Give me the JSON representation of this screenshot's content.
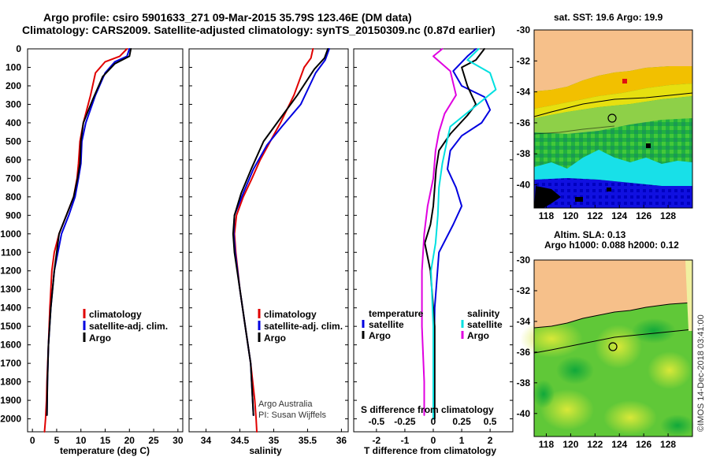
{
  "header": {
    "title_line1": "Argo profile: csiro 5901633_271 09-Mar-2015 35.79S 123.46E (DM data)",
    "title_line2": "Climatology: CARS2009. Satellite-adjusted climatology: synTS_20150309.nc (0.87d earlier)"
  },
  "colors": {
    "climatology": "#e00000",
    "satellite": "#0000e0",
    "argo": "#000000",
    "sat_salinity": "#00e0e0",
    "argo_salinity": "#e000e0",
    "land": "#f6c08a"
  },
  "credits": {
    "line1": "Argo Australia",
    "line2": "PI: Susan Wijffels",
    "stamp": "©IMOS 14-Dec-2018 03:41:00"
  },
  "chart_data": [
    {
      "type": "line",
      "panel": "temperature",
      "xlabel": "temperature (deg C)",
      "ylabel": "",
      "xlim": [
        -1,
        31
      ],
      "ylim": [
        2070,
        0
      ],
      "y_inverted": true,
      "xticks": [
        0,
        5,
        10,
        15,
        20,
        25,
        30
      ],
      "yticks": [
        0,
        100,
        200,
        300,
        400,
        500,
        600,
        700,
        800,
        900,
        1000,
        1100,
        1200,
        1300,
        1400,
        1500,
        1600,
        1700,
        1800,
        1900,
        2000
      ],
      "legend": [
        "climatology",
        "satellite-adj. clim.",
        "Argo"
      ],
      "legend_position": "lower-right",
      "series": [
        {
          "name": "climatology",
          "color": "#e00000",
          "x": [
            19.5,
            18,
            15,
            13,
            12,
            10.5,
            9.8,
            9.5,
            9.2,
            8.5,
            7,
            5.5,
            4.5,
            4.0,
            3.6,
            3.3,
            3.0,
            2.9,
            2.7,
            2.5
          ],
          "y": [
            0,
            40,
            70,
            130,
            250,
            400,
            500,
            620,
            700,
            800,
            900,
            1000,
            1100,
            1200,
            1400,
            1600,
            1800,
            1900,
            2000,
            2070
          ]
        },
        {
          "name": "satellite-adj. clim.",
          "color": "#0000e0",
          "x": [
            20.0,
            19.5,
            17,
            15,
            13,
            11,
            10.2,
            10,
            9.5,
            8.8,
            7.5,
            6,
            4.5,
            3.8,
            3.3,
            3.1,
            3.0
          ],
          "y": [
            0,
            40,
            70,
            130,
            250,
            400,
            500,
            620,
            700,
            800,
            900,
            1000,
            1200,
            1400,
            1600,
            1800,
            1980
          ]
        },
        {
          "name": "Argo",
          "color": "#000000",
          "x": [
            20.3,
            20.0,
            17,
            14.5,
            12.5,
            10.5,
            10.0,
            9.8,
            9.3,
            8.5,
            7,
            5.5,
            4.5,
            3.8,
            3.3,
            3.1,
            3.0
          ],
          "y": [
            0,
            40,
            80,
            150,
            270,
            400,
            500,
            620,
            700,
            800,
            900,
            1000,
            1200,
            1400,
            1600,
            1800,
            1980
          ]
        }
      ]
    },
    {
      "type": "line",
      "panel": "salinity",
      "xlabel": "salinity",
      "ylabel": "",
      "xlim": [
        33.75,
        36.1
      ],
      "ylim": [
        2070,
        0
      ],
      "y_inverted": true,
      "xticks": [
        34,
        34.5,
        35,
        35.5,
        36
      ],
      "legend": [
        "climatology",
        "satellite-adj. clim.",
        "Argo"
      ],
      "legend_position": "lower-right",
      "series": [
        {
          "name": "climatology",
          "color": "#e00000",
          "x": [
            35.58,
            35.55,
            35.45,
            35.3,
            35.1,
            34.95,
            34.8,
            34.68,
            34.55,
            34.45,
            34.42,
            34.44,
            34.5,
            34.58,
            34.66,
            34.72,
            34.74,
            34.75
          ],
          "y": [
            0,
            50,
            100,
            250,
            400,
            500,
            600,
            700,
            800,
            900,
            1000,
            1100,
            1300,
            1500,
            1700,
            1900,
            2000,
            2070
          ]
        },
        {
          "name": "satellite-adj. clim.",
          "color": "#0000e0",
          "x": [
            35.82,
            35.76,
            35.62,
            35.4,
            35.12,
            34.9,
            34.7,
            34.55,
            34.42,
            34.41,
            34.43,
            34.5,
            34.58,
            34.66,
            34.7
          ],
          "y": [
            0,
            60,
            130,
            300,
            420,
            520,
            650,
            780,
            900,
            1000,
            1100,
            1300,
            1500,
            1700,
            1980
          ]
        },
        {
          "name": "Argo",
          "color": "#000000",
          "x": [
            35.8,
            35.75,
            35.6,
            35.35,
            35.05,
            34.85,
            34.68,
            34.52,
            34.42,
            34.4,
            34.42,
            34.5,
            34.58,
            34.66,
            34.7
          ],
          "y": [
            0,
            50,
            110,
            250,
            400,
            500,
            640,
            780,
            900,
            1000,
            1100,
            1300,
            1500,
            1700,
            1980
          ]
        }
      ]
    },
    {
      "type": "line",
      "panel": "differences",
      "xlabel": "T difference from climatology",
      "xlabel_top": "S difference from climatology",
      "ylabel": "",
      "xlim": [
        -2.8,
        2.8
      ],
      "xlim_salinity": [
        -0.7,
        0.7
      ],
      "ylim": [
        2070,
        0
      ],
      "y_inverted": true,
      "xticks": [
        -2,
        -1,
        0,
        1,
        2
      ],
      "xticks_salinity": [
        -0.5,
        -0.25,
        0,
        0.25,
        0.5
      ],
      "xtick_labels_salinity": [
        "-0.5",
        "-0.25",
        "0",
        "0.25",
        "0.5"
      ],
      "legend_left_title": "temperature",
      "legend_right_title": "salinity",
      "legend_left": [
        "satellite",
        "Argo"
      ],
      "legend_right": [
        "satellite",
        "Argo"
      ],
      "series": [
        {
          "name": "satellite",
          "color": "#0000e0",
          "x": [
            1.5,
            1.2,
            0.7,
            1.0,
            1.8,
            2.0,
            1.7,
            1.0,
            0.6,
            0.5,
            0.8,
            1.0,
            0.7,
            0.2,
            0.05,
            0.0
          ],
          "y": [
            0,
            40,
            120,
            200,
            260,
            330,
            400,
            470,
            550,
            650,
            750,
            850,
            950,
            1100,
            1400,
            2000
          ]
        },
        {
          "name": "Argo",
          "color": "#000000",
          "x": [
            1.8,
            1.5,
            1.0,
            1.2,
            1.5,
            1.2,
            0.6,
            0.2,
            0.1,
            0.05,
            0.0,
            -0.1,
            -0.3,
            -0.1,
            0.05,
            0.05
          ],
          "y": [
            0,
            60,
            100,
            200,
            300,
            360,
            460,
            550,
            650,
            750,
            850,
            950,
            1050,
            1200,
            1500,
            2000
          ]
        },
        {
          "name": "satellite",
          "color": "#00e0e0",
          "x": [
            0.4,
            0.3,
            0.5,
            0.55,
            0.35,
            0.15,
            0.12,
            0.08,
            0.05,
            0.04,
            0.02,
            -0.02,
            0.0,
            0.0
          ],
          "y": [
            0,
            60,
            130,
            220,
            320,
            420,
            500,
            620,
            750,
            900,
            1050,
            1200,
            1500,
            2000
          ]
        },
        {
          "name": "Argo",
          "color": "#e000e0",
          "x": [
            0.08,
            0.0,
            0.15,
            0.2,
            0.1,
            0.05,
            0.02,
            0.0,
            -0.05,
            -0.08,
            -0.1,
            -0.1,
            -0.08,
            -0.08
          ],
          "y": [
            0,
            40,
            120,
            250,
            350,
            450,
            550,
            700,
            850,
            1000,
            1200,
            1500,
            1800,
            1980
          ]
        }
      ]
    },
    {
      "type": "heatmap",
      "panel": "sst-map",
      "title": "sat. SST: 19.6  Argo: 19.9",
      "xticks": [
        118,
        120,
        122,
        124,
        126,
        128
      ],
      "yticks": [
        -30,
        -32,
        -34,
        -36,
        -38,
        -40
      ],
      "xlim": [
        117,
        130
      ],
      "ylim": [
        -41.5,
        -30
      ]
    },
    {
      "type": "heatmap",
      "panel": "sla-map",
      "title": "Altim. SLA: 0.13",
      "subtitle": "Argo h1000: 0.088 h2000: 0.12",
      "xticks": [
        118,
        120,
        122,
        124,
        126,
        128
      ],
      "yticks": [
        -30,
        -32,
        -34,
        -36,
        -38,
        -40
      ],
      "xlim": [
        117,
        130
      ],
      "ylim": [
        -41.5,
        -30
      ]
    }
  ]
}
